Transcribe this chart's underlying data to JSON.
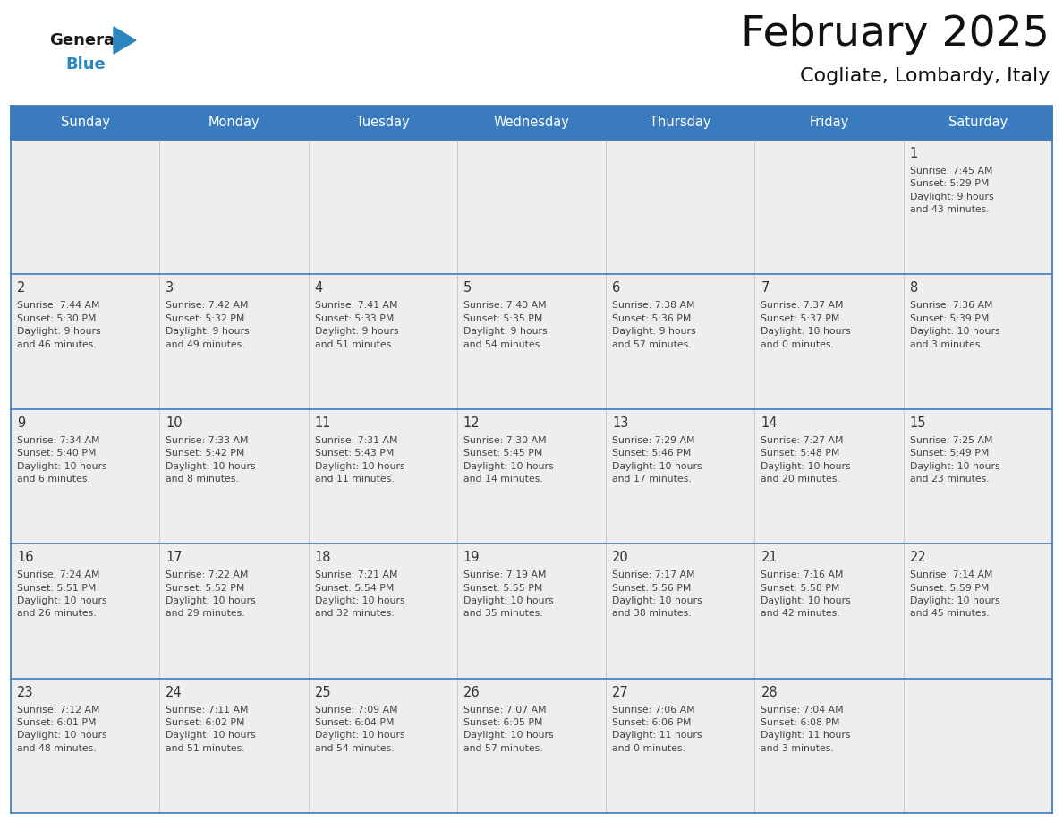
{
  "title": "February 2025",
  "subtitle": "Cogliate, Lombardy, Italy",
  "days_of_week": [
    "Sunday",
    "Monday",
    "Tuesday",
    "Wednesday",
    "Thursday",
    "Friday",
    "Saturday"
  ],
  "header_bg": "#3a7bbf",
  "header_text": "#ffffff",
  "cell_bg": "#eeeeee",
  "line_color": "#3a7bbf",
  "text_color": "#444444",
  "day_num_color": "#333333",
  "logo_general_color": "#1a1a1a",
  "logo_blue_color": "#2e86c1",
  "weeks": [
    [
      {
        "day": null,
        "info": null
      },
      {
        "day": null,
        "info": null
      },
      {
        "day": null,
        "info": null
      },
      {
        "day": null,
        "info": null
      },
      {
        "day": null,
        "info": null
      },
      {
        "day": null,
        "info": null
      },
      {
        "day": 1,
        "info": "Sunrise: 7:45 AM\nSunset: 5:29 PM\nDaylight: 9 hours\nand 43 minutes."
      }
    ],
    [
      {
        "day": 2,
        "info": "Sunrise: 7:44 AM\nSunset: 5:30 PM\nDaylight: 9 hours\nand 46 minutes."
      },
      {
        "day": 3,
        "info": "Sunrise: 7:42 AM\nSunset: 5:32 PM\nDaylight: 9 hours\nand 49 minutes."
      },
      {
        "day": 4,
        "info": "Sunrise: 7:41 AM\nSunset: 5:33 PM\nDaylight: 9 hours\nand 51 minutes."
      },
      {
        "day": 5,
        "info": "Sunrise: 7:40 AM\nSunset: 5:35 PM\nDaylight: 9 hours\nand 54 minutes."
      },
      {
        "day": 6,
        "info": "Sunrise: 7:38 AM\nSunset: 5:36 PM\nDaylight: 9 hours\nand 57 minutes."
      },
      {
        "day": 7,
        "info": "Sunrise: 7:37 AM\nSunset: 5:37 PM\nDaylight: 10 hours\nand 0 minutes."
      },
      {
        "day": 8,
        "info": "Sunrise: 7:36 AM\nSunset: 5:39 PM\nDaylight: 10 hours\nand 3 minutes."
      }
    ],
    [
      {
        "day": 9,
        "info": "Sunrise: 7:34 AM\nSunset: 5:40 PM\nDaylight: 10 hours\nand 6 minutes."
      },
      {
        "day": 10,
        "info": "Sunrise: 7:33 AM\nSunset: 5:42 PM\nDaylight: 10 hours\nand 8 minutes."
      },
      {
        "day": 11,
        "info": "Sunrise: 7:31 AM\nSunset: 5:43 PM\nDaylight: 10 hours\nand 11 minutes."
      },
      {
        "day": 12,
        "info": "Sunrise: 7:30 AM\nSunset: 5:45 PM\nDaylight: 10 hours\nand 14 minutes."
      },
      {
        "day": 13,
        "info": "Sunrise: 7:29 AM\nSunset: 5:46 PM\nDaylight: 10 hours\nand 17 minutes."
      },
      {
        "day": 14,
        "info": "Sunrise: 7:27 AM\nSunset: 5:48 PM\nDaylight: 10 hours\nand 20 minutes."
      },
      {
        "day": 15,
        "info": "Sunrise: 7:25 AM\nSunset: 5:49 PM\nDaylight: 10 hours\nand 23 minutes."
      }
    ],
    [
      {
        "day": 16,
        "info": "Sunrise: 7:24 AM\nSunset: 5:51 PM\nDaylight: 10 hours\nand 26 minutes."
      },
      {
        "day": 17,
        "info": "Sunrise: 7:22 AM\nSunset: 5:52 PM\nDaylight: 10 hours\nand 29 minutes."
      },
      {
        "day": 18,
        "info": "Sunrise: 7:21 AM\nSunset: 5:54 PM\nDaylight: 10 hours\nand 32 minutes."
      },
      {
        "day": 19,
        "info": "Sunrise: 7:19 AM\nSunset: 5:55 PM\nDaylight: 10 hours\nand 35 minutes."
      },
      {
        "day": 20,
        "info": "Sunrise: 7:17 AM\nSunset: 5:56 PM\nDaylight: 10 hours\nand 38 minutes."
      },
      {
        "day": 21,
        "info": "Sunrise: 7:16 AM\nSunset: 5:58 PM\nDaylight: 10 hours\nand 42 minutes."
      },
      {
        "day": 22,
        "info": "Sunrise: 7:14 AM\nSunset: 5:59 PM\nDaylight: 10 hours\nand 45 minutes."
      }
    ],
    [
      {
        "day": 23,
        "info": "Sunrise: 7:12 AM\nSunset: 6:01 PM\nDaylight: 10 hours\nand 48 minutes."
      },
      {
        "day": 24,
        "info": "Sunrise: 7:11 AM\nSunset: 6:02 PM\nDaylight: 10 hours\nand 51 minutes."
      },
      {
        "day": 25,
        "info": "Sunrise: 7:09 AM\nSunset: 6:04 PM\nDaylight: 10 hours\nand 54 minutes."
      },
      {
        "day": 26,
        "info": "Sunrise: 7:07 AM\nSunset: 6:05 PM\nDaylight: 10 hours\nand 57 minutes."
      },
      {
        "day": 27,
        "info": "Sunrise: 7:06 AM\nSunset: 6:06 PM\nDaylight: 11 hours\nand 0 minutes."
      },
      {
        "day": 28,
        "info": "Sunrise: 7:04 AM\nSunset: 6:08 PM\nDaylight: 11 hours\nand 3 minutes."
      },
      {
        "day": null,
        "info": null
      }
    ]
  ],
  "fig_width": 11.88,
  "fig_height": 9.18,
  "dpi": 100
}
